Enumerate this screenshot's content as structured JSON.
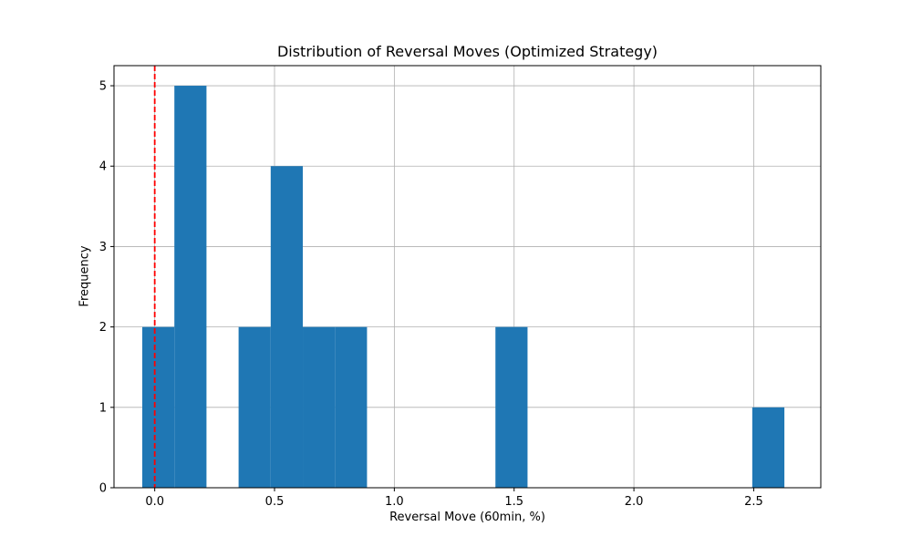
{
  "chart_data": {
    "type": "histogram",
    "title": "Distribution of Reversal Moves (Optimized Strategy)",
    "xlabel": "Reversal Move (60min, %)",
    "ylabel": "Frequency",
    "xlim": [
      -0.17,
      2.78
    ],
    "ylim": [
      0,
      5.25
    ],
    "xticks": [
      "0.0",
      "0.5",
      "1.0",
      "1.5",
      "2.0",
      "2.5"
    ],
    "xtick_values": [
      0.0,
      0.5,
      1.0,
      1.5,
      2.0,
      2.5
    ],
    "yticks": [
      "0",
      "1",
      "2",
      "3",
      "4",
      "5"
    ],
    "ytick_values": [
      0,
      1,
      2,
      3,
      4,
      5
    ],
    "grid": true,
    "bar_color": "#1f77b4",
    "bins": [
      {
        "x0": -0.052,
        "x1": 0.082,
        "count": 2
      },
      {
        "x0": 0.082,
        "x1": 0.216,
        "count": 5
      },
      {
        "x0": 0.216,
        "x1": 0.35,
        "count": 0
      },
      {
        "x0": 0.35,
        "x1": 0.484,
        "count": 2
      },
      {
        "x0": 0.484,
        "x1": 0.618,
        "count": 4
      },
      {
        "x0": 0.618,
        "x1": 0.752,
        "count": 2
      },
      {
        "x0": 0.752,
        "x1": 0.886,
        "count": 2
      },
      {
        "x0": 0.886,
        "x1": 1.02,
        "count": 0
      },
      {
        "x0": 1.02,
        "x1": 1.154,
        "count": 0
      },
      {
        "x0": 1.154,
        "x1": 1.288,
        "count": 0
      },
      {
        "x0": 1.288,
        "x1": 1.422,
        "count": 0
      },
      {
        "x0": 1.422,
        "x1": 1.556,
        "count": 2
      },
      {
        "x0": 1.556,
        "x1": 1.69,
        "count": 0
      },
      {
        "x0": 1.69,
        "x1": 1.824,
        "count": 0
      },
      {
        "x0": 1.824,
        "x1": 1.958,
        "count": 0
      },
      {
        "x0": 1.958,
        "x1": 2.092,
        "count": 0
      },
      {
        "x0": 2.092,
        "x1": 2.226,
        "count": 0
      },
      {
        "x0": 2.226,
        "x1": 2.36,
        "count": 0
      },
      {
        "x0": 2.36,
        "x1": 2.494,
        "count": 0
      },
      {
        "x0": 2.494,
        "x1": 2.628,
        "count": 1
      }
    ],
    "reference_line": {
      "x": 0.0,
      "color": "#ff0000",
      "style": "dashed"
    }
  }
}
